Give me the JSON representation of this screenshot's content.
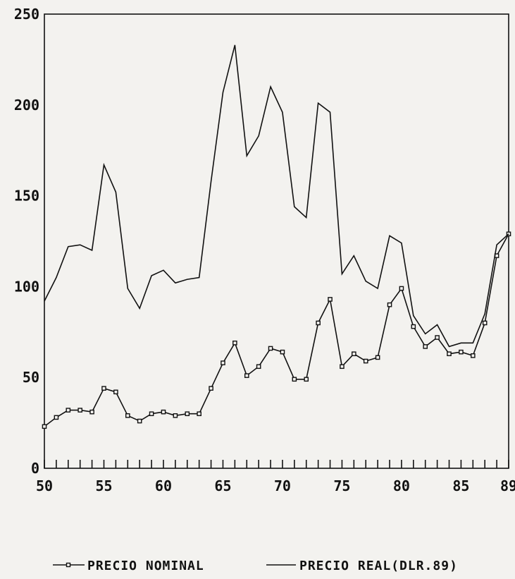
{
  "chart_data": {
    "type": "line",
    "x": [
      50,
      51,
      52,
      53,
      54,
      55,
      56,
      57,
      58,
      59,
      60,
      61,
      62,
      63,
      64,
      65,
      66,
      67,
      68,
      69,
      70,
      71,
      72,
      73,
      74,
      75,
      76,
      77,
      78,
      79,
      80,
      81,
      82,
      83,
      84,
      85,
      86,
      87,
      88,
      89
    ],
    "series": [
      {
        "name": "PRECIO NOMINAL",
        "marker": "square",
        "values": [
          23,
          28,
          32,
          32,
          31,
          44,
          42,
          29,
          26,
          30,
          31,
          29,
          30,
          30,
          44,
          58,
          69,
          51,
          56,
          66,
          64,
          49,
          49,
          80,
          93,
          56,
          63,
          59,
          61,
          90,
          99,
          78,
          67,
          72,
          63,
          64,
          62,
          80,
          117,
          129
        ]
      },
      {
        "name": "PRECIO REAL(DLR.89)",
        "marker": "none",
        "values": [
          92,
          105,
          122,
          123,
          120,
          167,
          152,
          99,
          88,
          106,
          109,
          102,
          104,
          105,
          158,
          207,
          233,
          172,
          183,
          210,
          196,
          144,
          138,
          201,
          196,
          107,
          117,
          103,
          99,
          128,
          124,
          84,
          74,
          79,
          67,
          69,
          69,
          85,
          123,
          129
        ]
      }
    ],
    "xticks": [
      50,
      55,
      60,
      65,
      70,
      75,
      80,
      85,
      89
    ],
    "xtick_labels": [
      "50",
      "55",
      "60",
      "65",
      "70",
      "75",
      "80",
      "85",
      "89"
    ],
    "yticks": [
      0,
      50,
      100,
      150,
      200,
      250
    ],
    "ytick_labels": [
      "0",
      "50",
      "100",
      "150",
      "200",
      "250"
    ],
    "xlim": [
      50,
      89
    ],
    "ylim": [
      0,
      250
    ],
    "title": "",
    "xlabel": "",
    "ylabel": "",
    "legend_position": "bottom",
    "grid": false
  }
}
